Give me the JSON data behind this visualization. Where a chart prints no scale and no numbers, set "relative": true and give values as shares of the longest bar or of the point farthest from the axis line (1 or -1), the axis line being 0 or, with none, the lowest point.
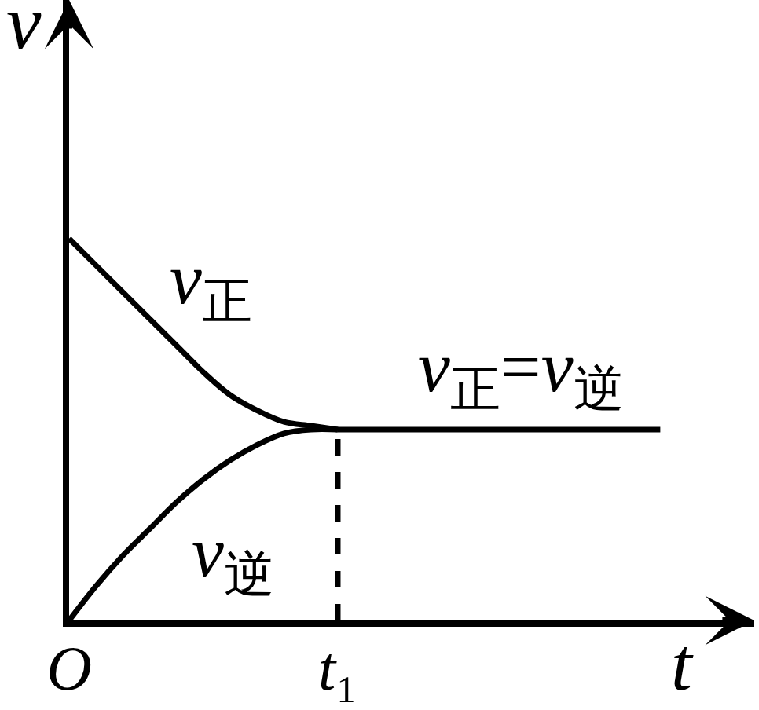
{
  "chart_data": {
    "type": "line",
    "relative": true,
    "xlabel": "t",
    "ylabel": "v",
    "categories": [
      "O",
      null,
      null,
      null,
      null,
      null,
      null,
      null,
      null,
      null,
      "t₁",
      null,
      null,
      null,
      null,
      null,
      null,
      null,
      null,
      null,
      null,
      null,
      null
    ],
    "series": [
      {
        "name": "v$_{正}$",
        "color": "#000000",
        "values": [
          1,
          0.93,
          0.86,
          0.79,
          0.72,
          0.65,
          0.59,
          0.55,
          0.52,
          0.51,
          0.5,
          null,
          null,
          null,
          null,
          null,
          null,
          null,
          null,
          null,
          null,
          null,
          null
        ]
      },
      {
        "name": "v$_{逆}$",
        "color": "#000000",
        "values": [
          0,
          0.09,
          0.17,
          0.24,
          0.31,
          0.37,
          0.42,
          0.46,
          0.49,
          0.5,
          0.5,
          null,
          null,
          null,
          null,
          null,
          null,
          null,
          null,
          null,
          null,
          null,
          null
        ]
      },
      {
        "name": "v$_{正}$=v$_{逆}$",
        "color": "#000000",
        "values": [
          null,
          null,
          null,
          null,
          null,
          null,
          null,
          null,
          null,
          null,
          0.5,
          0.5,
          0.5,
          0.5,
          0.5,
          0.5,
          0.5,
          0.5,
          0.5,
          0.5,
          0.5,
          0.5,
          0.5
        ]
      }
    ],
    "ref_lines": [
      {
        "axis": "x",
        "value": "t₁",
        "color": "#000000",
        "line_style": "dashed"
      }
    ]
  }
}
